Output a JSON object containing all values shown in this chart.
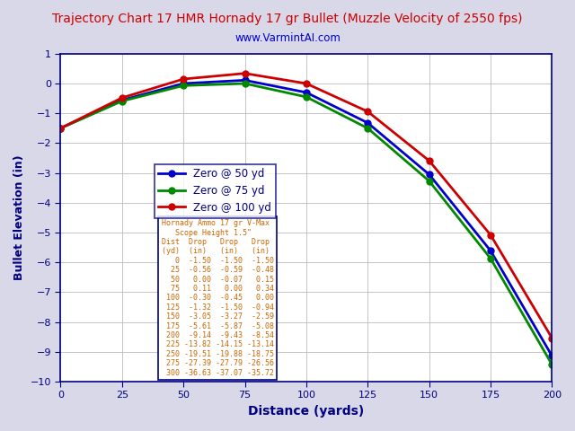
{
  "title": "Trajectory Chart 17 HMR Hornady 17 gr Bullet (Muzzle Velocity of 2550 fps)",
  "subtitle": "www.VarmintAI.com",
  "xlabel": "Distance (yards)",
  "ylabel": "Bullet Elevation (in)",
  "title_color": "#cc0000",
  "subtitle_color": "#0000cc",
  "distances": [
    0,
    25,
    50,
    75,
    100,
    125,
    150,
    175,
    200
  ],
  "zero_50": [
    -1.5,
    -0.56,
    0.0,
    0.11,
    -0.3,
    -1.32,
    -3.05,
    -5.61,
    -9.14
  ],
  "zero_75": [
    -1.5,
    -0.59,
    -0.07,
    0.0,
    -0.45,
    -1.5,
    -3.27,
    -5.87,
    -9.43
  ],
  "zero_100": [
    -1.5,
    -0.48,
    0.15,
    0.34,
    0.0,
    -0.94,
    -2.59,
    -5.08,
    -8.54
  ],
  "color_50": "#0000cc",
  "color_75": "#008800",
  "color_100": "#cc0000",
  "xlim": [
    0,
    200
  ],
  "ylim": [
    -10,
    1
  ],
  "xticks": [
    0,
    25,
    50,
    75,
    100,
    125,
    150,
    175,
    200
  ],
  "yticks": [
    -10,
    -9,
    -8,
    -7,
    -6,
    -5,
    -4,
    -3,
    -2,
    -1,
    0,
    1
  ],
  "legend_entries": [
    "Zero @ 50 yd",
    "Zero @ 75 yd",
    "Zero @ 100 yd"
  ],
  "bg_color": "#d8d8e8",
  "plot_bg": "#ffffff",
  "grid_color": "#bbbbbb",
  "table_color": "#cc6600",
  "table_text": "Hornady Ammo 17 gr V-Max\n   Scope Height 1.5\"\nDist  Drop   Drop   Drop\n(yd)  (in)   (in)   (in)\n   0  -1.50  -1.50  -1.50\n  25  -0.56  -0.59  -0.48\n  50   0.00  -0.07   0.15\n  75   0.11   0.00   0.34\n 100  -0.30  -0.45   0.00\n 125  -1.32  -1.50  -0.94\n 150  -3.05  -3.27  -2.59\n 175  -5.61  -5.87  -5.08\n 200  -9.14  -9.43  -8.54\n 225 -13.82 -14.15 -13.14\n 250 -19.51 -19.88 -18.75\n 275 -27.39 -27.79 -26.56\n 300 -36.63 -37.07 -35.72"
}
